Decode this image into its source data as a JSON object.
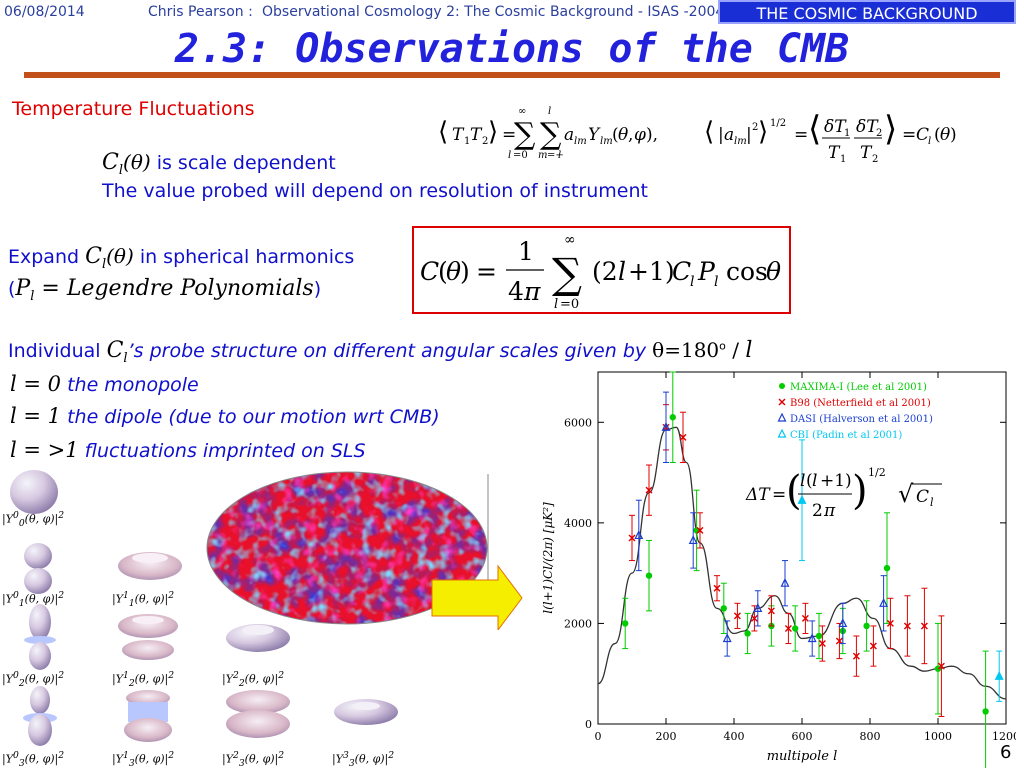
{
  "header": {
    "date": "06/08/2014",
    "author": "Chris Pearson :",
    "course": "Observational Cosmology 2: The Cosmic Background - ISAS -2004",
    "banner": "THE COSMIC BACKGROUND"
  },
  "title": "2.3: Observations of the CMB",
  "section": "Temperature Fluctuations",
  "scale": {
    "sym": "C",
    "sub": "l",
    "arg": "(θ)",
    "text": " is scale dependent",
    "note": "The value probed will depend on resolution of instrument"
  },
  "expand": {
    "pre": "Expand ",
    "sym": "C",
    "sub": "l",
    "arg": "(θ)",
    "post": " in spherical harmonics",
    "open": "(",
    "p": "P",
    "psub": "l",
    "legendre": " = Legendre Polynomials",
    "close": ")"
  },
  "individual": {
    "pre": "Individual ",
    "sym": "C",
    "sub": "l",
    "post": "’s probe structure on different angular scales given by ",
    "theta": "θ=180",
    "deg": "o",
    "div": " / ",
    "l": "l"
  },
  "cases": [
    {
      "eq": "l = 0",
      "text": " the monopole"
    },
    {
      "eq": "l = 1",
      "text": " the dipole (due to our motion wrt CMB)"
    },
    {
      "eq": "l = >1",
      "text": " fluctuations imprinted on SLS"
    }
  ],
  "harmonics": [
    {
      "cap": "|Y00(θ,φ)|2",
      "y": "0",
      "m": "0"
    },
    {
      "cap": "|Y01(θ,φ)|2",
      "y": "1",
      "m": "0"
    },
    {
      "cap": "|Y11(θ,φ)|2",
      "y": "1",
      "m": "1"
    },
    {
      "cap": "|Y02(θ,φ)|2",
      "y": "2",
      "m": "0"
    },
    {
      "cap": "|Y12(θ,φ)|2",
      "y": "2",
      "m": "1"
    },
    {
      "cap": "|Y22(θ,φ)|2",
      "y": "2",
      "m": "2"
    },
    {
      "cap": "|Y03(θ,φ)|2",
      "y": "3",
      "m": "0"
    },
    {
      "cap": "|Y13(θ,φ)|2",
      "y": "3",
      "m": "1"
    },
    {
      "cap": "|Y23(θ,φ)|2",
      "y": "3",
      "m": "2"
    },
    {
      "cap": "|Y33(θ,φ)|2",
      "y": "3",
      "m": "3"
    }
  ],
  "chart_data": {
    "type": "scatter",
    "xlabel": "multipole l",
    "ylabel": "l(l+1)Cl/(2π) [μK²]",
    "xlim": [
      0,
      1200
    ],
    "ylim": [
      0,
      7000
    ],
    "x_ticks": [
      "0",
      "200",
      "400",
      "600",
      "800",
      "1000",
      "1200"
    ],
    "y_ticks": [
      "0",
      "2000",
      "4000",
      "6000"
    ],
    "legend_position": "top-right",
    "series": [
      {
        "name": "MAXIMA-I (Lee et al 2001)",
        "color": "#00cc00",
        "marker": "circle",
        "points": [
          [
            80,
            2000,
            500
          ],
          [
            150,
            2950,
            700
          ],
          [
            220,
            6100,
            900
          ],
          [
            290,
            3850,
            800
          ],
          [
            370,
            2300,
            500
          ],
          [
            440,
            1800,
            400
          ],
          [
            510,
            1950,
            400
          ],
          [
            580,
            1900,
            450
          ],
          [
            650,
            1750,
            450
          ],
          [
            720,
            1850,
            450
          ],
          [
            790,
            1950,
            500
          ],
          [
            850,
            3100,
            1100
          ],
          [
            1000,
            1100,
            900
          ],
          [
            1140,
            250,
            1200
          ]
        ]
      },
      {
        "name": "B98 (Netterfield et al 2001)",
        "color": "#e00000",
        "marker": "x",
        "points": [
          [
            100,
            3700,
            450
          ],
          [
            150,
            4650,
            500
          ],
          [
            200,
            5900,
            450
          ],
          [
            250,
            5700,
            500
          ],
          [
            300,
            3850,
            350
          ],
          [
            350,
            2700,
            250
          ],
          [
            410,
            2150,
            250
          ],
          [
            460,
            2100,
            250
          ],
          [
            510,
            2250,
            300
          ],
          [
            560,
            1900,
            300
          ],
          [
            610,
            2100,
            300
          ],
          [
            660,
            1600,
            350
          ],
          [
            710,
            1650,
            350
          ],
          [
            760,
            1350,
            400
          ],
          [
            810,
            1550,
            400
          ],
          [
            860,
            2000,
            500
          ],
          [
            910,
            1950,
            600
          ],
          [
            960,
            1950,
            750
          ],
          [
            1010,
            1150,
            1000
          ]
        ]
      },
      {
        "name": "DASI (Halverson et al 2001)",
        "color": "#1a3fd0",
        "marker": "triangle",
        "points": [
          [
            120,
            3750,
            700
          ],
          [
            200,
            5900,
            700
          ],
          [
            280,
            3650,
            550
          ],
          [
            380,
            1700,
            350
          ],
          [
            470,
            2300,
            350
          ],
          [
            550,
            2800,
            450
          ],
          [
            630,
            1700,
            350
          ],
          [
            720,
            2000,
            400
          ],
          [
            840,
            2400,
            550
          ]
        ]
      },
      {
        "name": "CBI (Padin et al 2001)",
        "color": "#00c8f0",
        "marker": "triangle",
        "points": [
          [
            600,
            4450,
            1200
          ],
          [
            1180,
            950,
            500
          ]
        ]
      }
    ],
    "theory_curve": [
      [
        0,
        800
      ],
      [
        50,
        1600
      ],
      [
        100,
        3000
      ],
      [
        150,
        4600
      ],
      [
        200,
        5850
      ],
      [
        230,
        5900
      ],
      [
        260,
        5200
      ],
      [
        300,
        3600
      ],
      [
        350,
        2300
      ],
      [
        400,
        1800
      ],
      [
        430,
        1850
      ],
      [
        470,
        2300
      ],
      [
        520,
        2550
      ],
      [
        560,
        2200
      ],
      [
        600,
        1700
      ],
      [
        650,
        1750
      ],
      [
        720,
        2400
      ],
      [
        760,
        2500
      ],
      [
        810,
        2100
      ],
      [
        860,
        1500
      ],
      [
        920,
        1150
      ],
      [
        960,
        1050
      ],
      [
        1000,
        1100
      ],
      [
        1040,
        1150
      ],
      [
        1090,
        1000
      ],
      [
        1140,
        750
      ],
      [
        1200,
        500
      ]
    ]
  },
  "cmb_colors": {
    "bg": "#e8102a",
    "blue": "#2a3be8",
    "cyan": "#7fd8ff",
    "magenta": "#ff3cc8"
  },
  "arrow_color": "#f6ee00",
  "page_number": "6"
}
